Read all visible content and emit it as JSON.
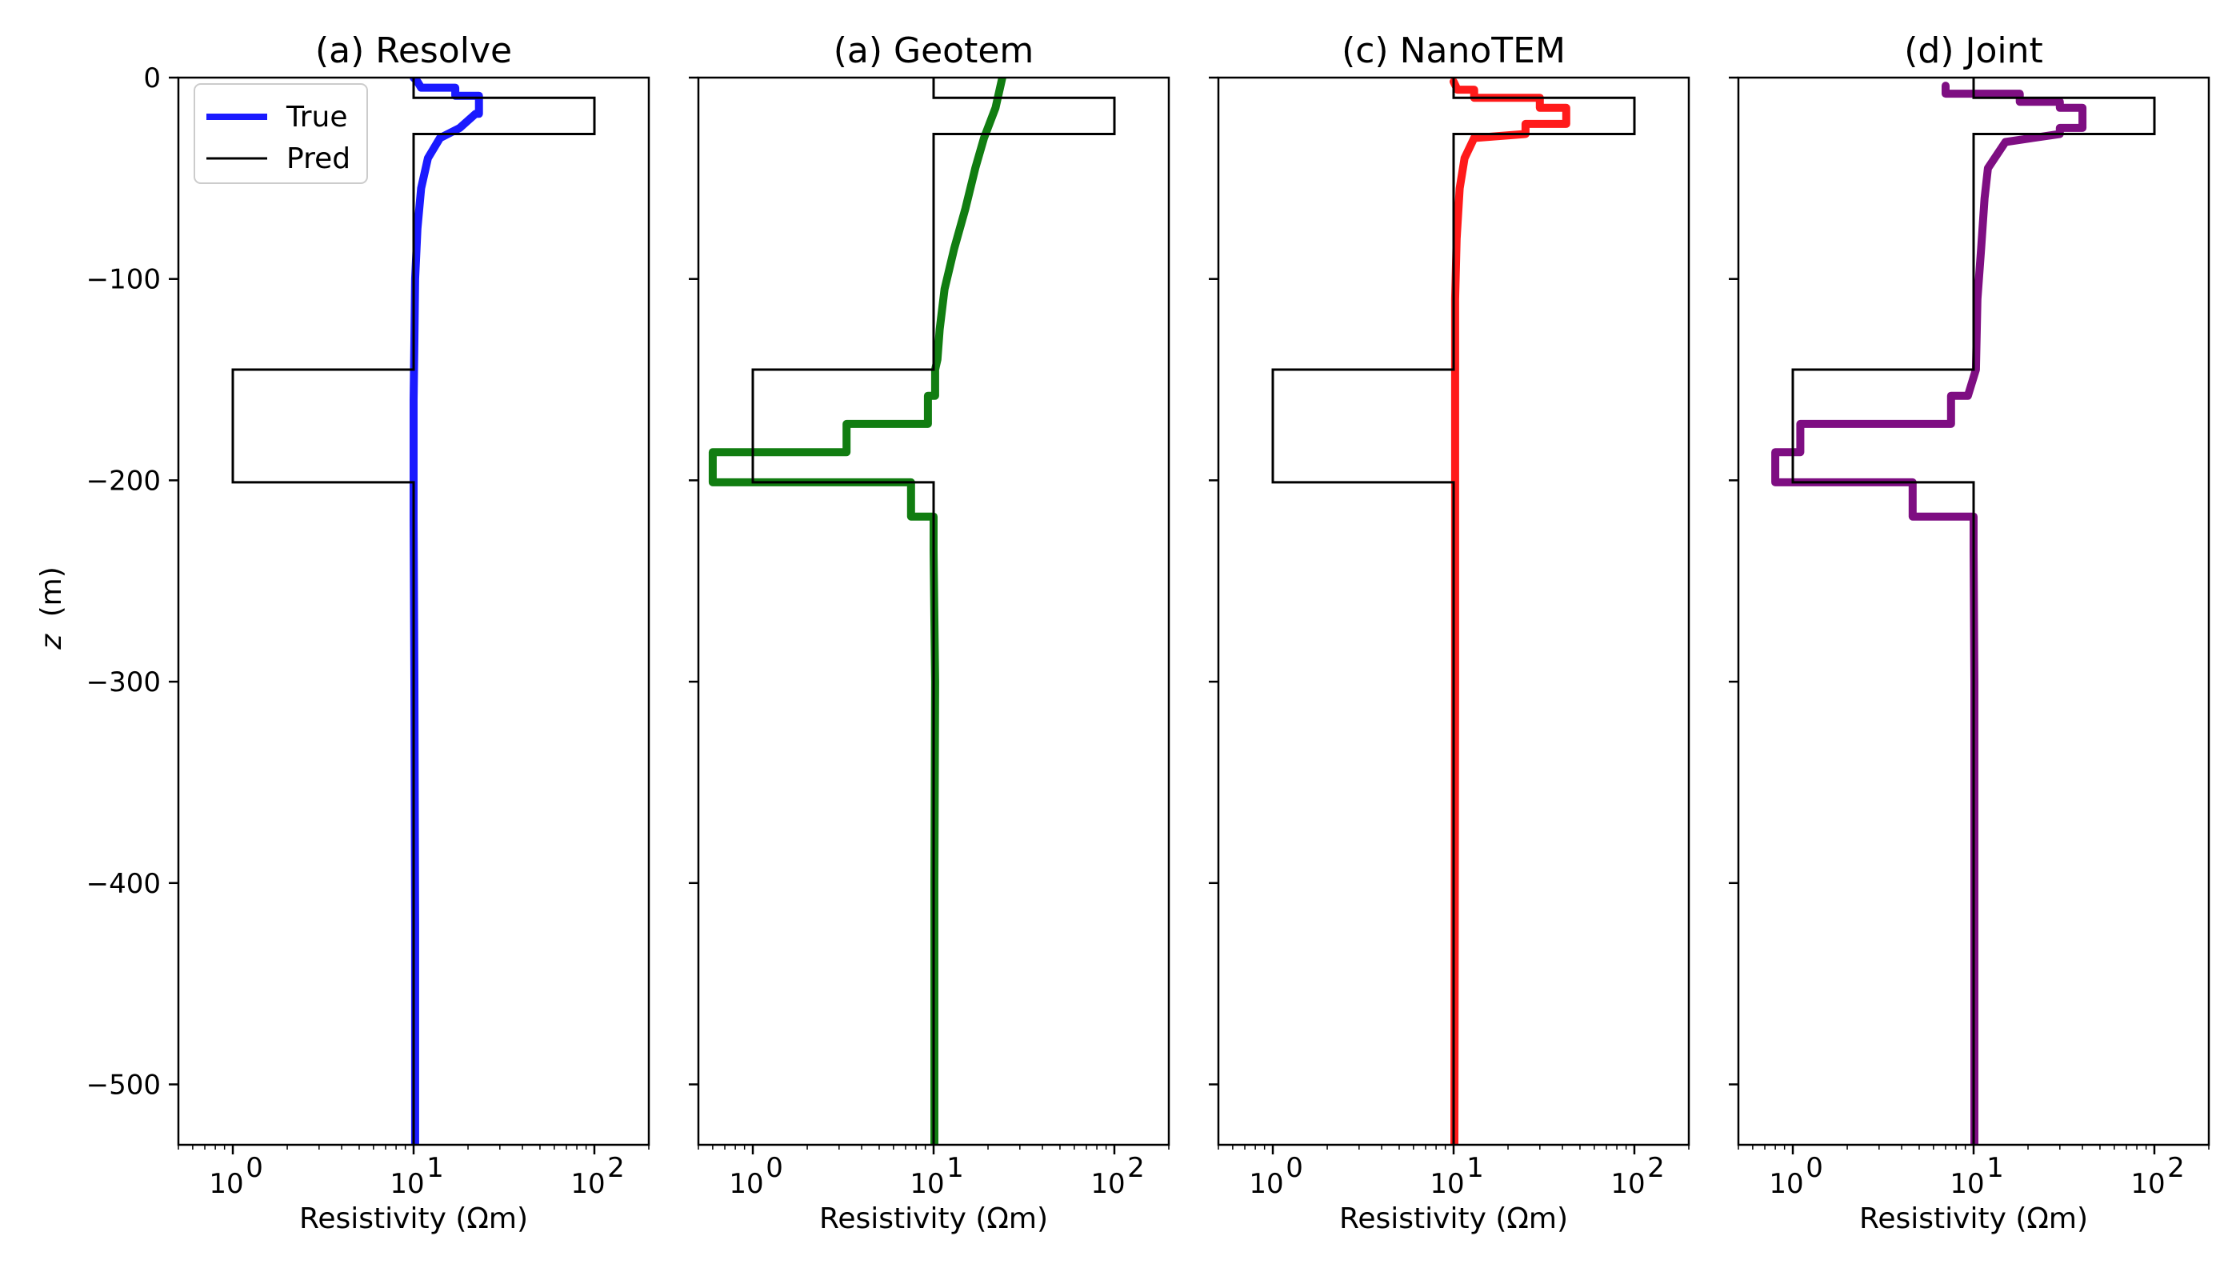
{
  "figure": {
    "ylabel_var": "z",
    "ylabel_unit": "(m)",
    "xlabel": "Resistivity (Ωm)",
    "legend": {
      "location": "upper-left",
      "true_label": "True",
      "pred_label": "Pred"
    },
    "xticks": [
      {
        "value": 1,
        "label": "10",
        "exp": "0"
      },
      {
        "value": 10,
        "label": "10",
        "exp": "1"
      },
      {
        "value": 100,
        "label": "10",
        "exp": "2"
      }
    ],
    "yticks": [
      {
        "value": 0,
        "label": "0"
      },
      {
        "value": -100,
        "label": "−100"
      },
      {
        "value": -200,
        "label": "−200"
      },
      {
        "value": -300,
        "label": "−300"
      },
      {
        "value": -400,
        "label": "−400"
      },
      {
        "value": -500,
        "label": "−500"
      }
    ]
  },
  "chart_data": [
    {
      "type": "line",
      "title": "(a) Resolve",
      "xlabel": "Resistivity (Ωm)",
      "ylabel": "z (m)",
      "xscale": "log",
      "xlim": [
        0.5,
        200
      ],
      "ylim": [
        -530,
        0
      ],
      "legend": "top-left",
      "colors": {
        "pred": "#1a1aff",
        "true": "#000000"
      },
      "true_model": {
        "x": [
          10,
          10,
          100,
          100,
          10,
          10,
          1,
          1,
          10,
          10
        ],
        "z": [
          0,
          -10,
          -10,
          -28,
          -28,
          -145,
          -145,
          -201,
          -201,
          -530
        ]
      },
      "predicted": {
        "x": [
          10,
          10.5,
          11,
          17,
          17,
          23,
          23,
          22,
          18,
          14,
          12,
          11,
          10.5,
          10.2,
          10.1,
          10,
          10,
          10.1,
          10.2,
          10.2
        ],
        "z": [
          0,
          -2,
          -5,
          -5,
          -9,
          -9,
          -18,
          -18,
          -25,
          -30,
          -40,
          -55,
          -75,
          -100,
          -130,
          -160,
          -220,
          -300,
          -420,
          -530
        ]
      }
    },
    {
      "type": "line",
      "title": "(a) Geotem",
      "xlabel": "Resistivity (Ωm)",
      "ylabel": "",
      "xscale": "log",
      "xlim": [
        0.5,
        200
      ],
      "ylim": [
        -530,
        0
      ],
      "colors": {
        "pred": "#117d11",
        "true": "#000000"
      },
      "true_model": {
        "x": [
          10,
          10,
          100,
          100,
          10,
          10,
          1,
          1,
          10,
          10
        ],
        "z": [
          0,
          -10,
          -10,
          -28,
          -28,
          -145,
          -145,
          -201,
          -201,
          -530
        ]
      },
      "predicted": {
        "x": [
          24,
          22,
          19,
          17,
          15,
          13,
          11.5,
          10.8,
          10.5,
          10.2,
          10.2,
          9.3,
          9.3,
          3.3,
          3.3,
          0.6,
          0.6,
          7.5,
          7.5,
          10,
          10,
          10.2,
          10.1,
          10.1
        ],
        "z": [
          0,
          -15,
          -30,
          -45,
          -65,
          -85,
          -105,
          -125,
          -140,
          -145,
          -158,
          -158,
          -172,
          -172,
          -186,
          -186,
          -201,
          -201,
          -218,
          -218,
          -235,
          -300,
          -400,
          -530
        ]
      }
    },
    {
      "type": "line",
      "title": "(c) NanoTEM",
      "xlabel": "Resistivity (Ωm)",
      "ylabel": "",
      "xscale": "log",
      "xlim": [
        0.5,
        200
      ],
      "ylim": [
        -530,
        0
      ],
      "colors": {
        "pred": "#ff1a1a",
        "true": "#000000"
      },
      "true_model": {
        "x": [
          10,
          10,
          100,
          100,
          10,
          10,
          1,
          1,
          10,
          10
        ],
        "z": [
          0,
          -10,
          -10,
          -28,
          -28,
          -145,
          -145,
          -201,
          -201,
          -530
        ]
      },
      "predicted": {
        "x": [
          10,
          10.5,
          13,
          13,
          30,
          30,
          42,
          42,
          25,
          25,
          13,
          11.5,
          10.8,
          10.4,
          10.2,
          10.2,
          10.2,
          10.1
        ],
        "z": [
          -2,
          -6,
          -6,
          -10,
          -10,
          -15,
          -15,
          -23,
          -23,
          -28,
          -30,
          -40,
          -55,
          -80,
          -110,
          -200,
          -300,
          -530
        ]
      }
    },
    {
      "type": "line",
      "title": "(d) Joint",
      "xlabel": "Resistivity (Ωm)",
      "ylabel": "",
      "xscale": "log",
      "xlim": [
        0.5,
        200
      ],
      "ylim": [
        -530,
        0
      ],
      "colors": {
        "pred": "#7e0e82",
        "true": "#000000"
      },
      "true_model": {
        "x": [
          10,
          10,
          100,
          100,
          10,
          10,
          1,
          1,
          10,
          10
        ],
        "z": [
          0,
          -10,
          -10,
          -28,
          -28,
          -145,
          -145,
          -201,
          -201,
          -530
        ]
      },
      "predicted": {
        "x": [
          7,
          7,
          18,
          18,
          30,
          30,
          40,
          40,
          30,
          30,
          15,
          12,
          11.5,
          11,
          10.5,
          10.3,
          9.3,
          7.5,
          7.5,
          1.1,
          1.1,
          0.8,
          0.8,
          4.6,
          4.6,
          10,
          10,
          10.1,
          10.1
        ],
        "z": [
          -4,
          -8,
          -8,
          -12,
          -12,
          -15,
          -15,
          -25,
          -25,
          -28,
          -32,
          -45,
          -60,
          -85,
          -110,
          -145,
          -158,
          -158,
          -172,
          -172,
          -186,
          -186,
          -201,
          -201,
          -218,
          -218,
          -235,
          -300,
          -530
        ]
      }
    }
  ]
}
